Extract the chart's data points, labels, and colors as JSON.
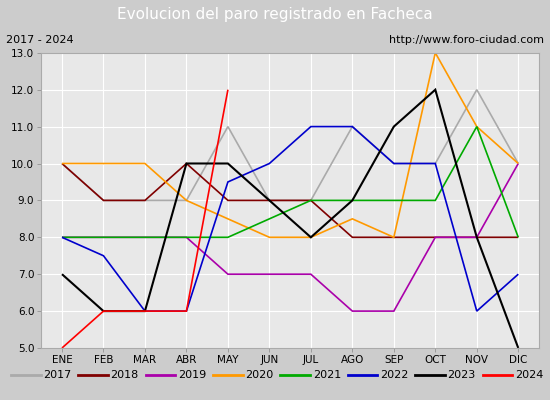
{
  "title": "Evolucion del paro registrado en Facheca",
  "subtitle_left": "2017 - 2024",
  "subtitle_right": "http://www.foro-ciudad.com",
  "months": [
    "ENE",
    "FEB",
    "MAR",
    "ABR",
    "MAY",
    "JUN",
    "JUL",
    "AGO",
    "SEP",
    "OCT",
    "NOV",
    "DIC"
  ],
  "ylim": [
    5.0,
    13.0
  ],
  "yticks": [
    5.0,
    6.0,
    7.0,
    8.0,
    9.0,
    10.0,
    11.0,
    12.0,
    13.0
  ],
  "series": {
    "2017": {
      "values": [
        10.0,
        9.0,
        9.0,
        9.0,
        11.0,
        9.0,
        9.0,
        11.0,
        10.0,
        10.0,
        12.0,
        10.0
      ],
      "color": "#aaaaaa",
      "linewidth": 1.2
    },
    "2018": {
      "values": [
        10.0,
        9.0,
        9.0,
        10.0,
        9.0,
        9.0,
        9.0,
        8.0,
        8.0,
        8.0,
        8.0,
        8.0
      ],
      "color": "#800000",
      "linewidth": 1.2
    },
    "2019": {
      "values": [
        8.0,
        8.0,
        8.0,
        8.0,
        7.0,
        7.0,
        7.0,
        6.0,
        6.0,
        8.0,
        8.0,
        10.0
      ],
      "color": "#aa00aa",
      "linewidth": 1.2
    },
    "2020": {
      "values": [
        10.0,
        10.0,
        10.0,
        9.0,
        8.5,
        8.0,
        8.0,
        8.5,
        8.0,
        13.0,
        11.0,
        10.0
      ],
      "color": "#ff9900",
      "linewidth": 1.2
    },
    "2021": {
      "values": [
        8.0,
        8.0,
        8.0,
        8.0,
        8.0,
        8.5,
        9.0,
        9.0,
        9.0,
        9.0,
        11.0,
        8.0
      ],
      "color": "#00aa00",
      "linewidth": 1.2
    },
    "2022": {
      "values": [
        8.0,
        7.5,
        6.0,
        6.0,
        9.5,
        10.0,
        11.0,
        11.0,
        10.0,
        10.0,
        6.0,
        7.0
      ],
      "color": "#0000cc",
      "linewidth": 1.2
    },
    "2023": {
      "values": [
        7.0,
        6.0,
        6.0,
        10.0,
        10.0,
        9.0,
        8.0,
        9.0,
        11.0,
        12.0,
        8.0,
        5.0
      ],
      "color": "#000000",
      "linewidth": 1.5
    },
    "2024": {
      "values": [
        5.0,
        6.0,
        6.0,
        6.0,
        12.0,
        null,
        null,
        null,
        null,
        null,
        null,
        null
      ],
      "color": "#ff0000",
      "linewidth": 1.2
    }
  },
  "title_bg_color": "#4466bb",
  "title_font_color": "#ffffff",
  "subtitle_bg_color": "#cccccc",
  "plot_bg_color": "#e8e8e8",
  "legend_bg_color": "#cccccc",
  "grid_color": "#ffffff",
  "fig_bg_color": "#cccccc",
  "title_fontsize": 11,
  "subtitle_fontsize": 8,
  "tick_fontsize": 7.5,
  "legend_fontsize": 8
}
